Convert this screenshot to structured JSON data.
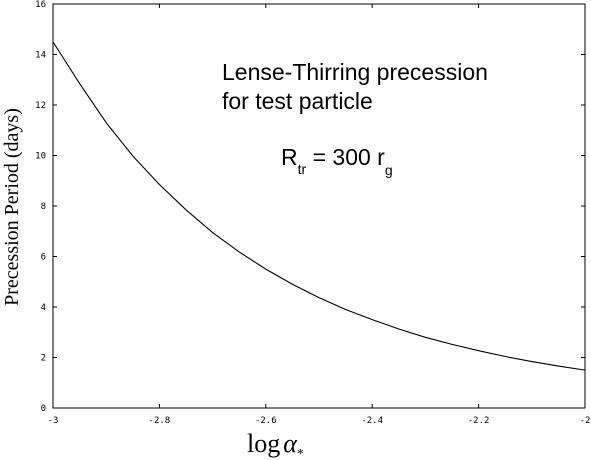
{
  "chart_data": {
    "type": "line",
    "xlabel": {
      "main": "log",
      "symbol": "α",
      "subscript": "*"
    },
    "ylabel": "Precession Period (days)",
    "xlim": [
      -3,
      -2
    ],
    "ylim": [
      0,
      16
    ],
    "xticks": [
      -3,
      -2.8,
      -2.6,
      -2.4,
      -2.2,
      -2
    ],
    "xtick_labels": [
      "-3",
      "-2.8",
      "-2.6",
      "-2.4",
      "-2.2",
      "-2"
    ],
    "yticks": [
      0,
      2,
      4,
      6,
      8,
      10,
      12,
      14,
      16
    ],
    "ytick_labels": [
      "0",
      "2",
      "4",
      "6",
      "8",
      "10",
      "12",
      "14",
      "16"
    ],
    "grid": false,
    "annotations": {
      "line1": "Lense-Thirring precession",
      "line2": "for test particle",
      "rtr_main": "R",
      "rtr_sub": "tr",
      "rtr_eq": " = 300 r",
      "rtr_g": "g"
    },
    "series": [
      {
        "x": [
          -3.0,
          -2.95,
          -2.9,
          -2.85,
          -2.8,
          -2.75,
          -2.7,
          -2.65,
          -2.6,
          -2.55,
          -2.5,
          -2.45,
          -2.4,
          -2.35,
          -2.3,
          -2.25,
          -2.2,
          -2.15,
          -2.1,
          -2.05,
          -2.0
        ],
        "y": [
          14.5,
          12.85,
          11.3,
          9.98,
          8.85,
          7.85,
          6.95,
          6.18,
          5.5,
          4.9,
          4.37,
          3.9,
          3.5,
          3.13,
          2.8,
          2.52,
          2.27,
          2.04,
          1.84,
          1.66,
          1.5
        ]
      }
    ]
  }
}
